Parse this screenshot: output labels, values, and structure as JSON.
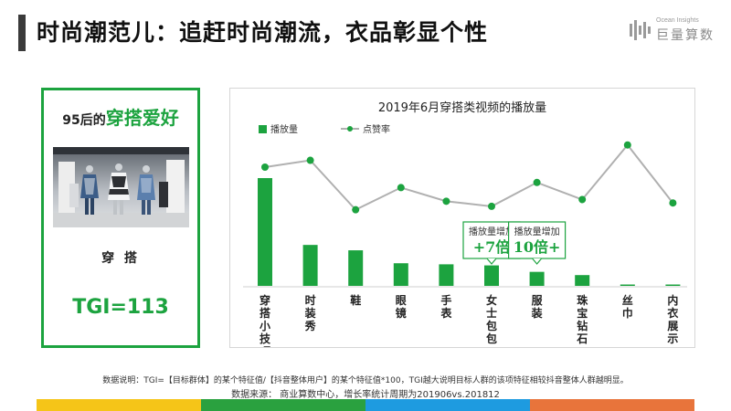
{
  "header": {
    "title": "时尚潮范儿：追赶时尚潮流，衣品彰显个性",
    "brand_en": "Ocean Insights",
    "brand_cn": "巨量算数"
  },
  "left_panel": {
    "heading_prefix": "95后的",
    "heading_highlight": "穿搭爱好",
    "label": "穿 搭",
    "tgi": "TGI=113"
  },
  "chart_data": {
    "type": "bar",
    "title": "2019年6月穿搭类视频的播放量",
    "categories": [
      "穿搭小技巧",
      "时装秀",
      "鞋",
      "眼镜",
      "手表",
      "女士包包",
      "服装",
      "珠宝钻石",
      "丝巾",
      "内衣展示"
    ],
    "series": [
      {
        "name": "播放量",
        "type": "bar",
        "color": "#1ca33f",
        "values": [
          100,
          38,
          33,
          21,
          20,
          19,
          13,
          10,
          1,
          1
        ]
      },
      {
        "name": "点赞率",
        "type": "line",
        "color": "#b0b0b0",
        "values": [
          60,
          64,
          35,
          48,
          40,
          37,
          51,
          41,
          73,
          39
        ]
      }
    ],
    "annotations": [
      {
        "category": "女士包包",
        "line1": "播放量增加",
        "line2": "+7倍"
      },
      {
        "category": "服装",
        "line1": "播放量增加",
        "line2": "10倍+"
      }
    ],
    "legend_position": "top-left",
    "grid": false
  },
  "footer": {
    "note": "数据说明：TGI=【目标群体】的某个特征值/【抖音整体用户】的某个特征值*100，TGI越大说明目标人群的该项特征相较抖音整体人群越明显。",
    "source": "数据来源：  商业算数中心，增长率统计周期为201906vs.201812"
  },
  "colors": {
    "accent": "#1ca33f",
    "yellow": "#f5c518",
    "blue": "#1e9be0",
    "orange": "#e8743b"
  }
}
